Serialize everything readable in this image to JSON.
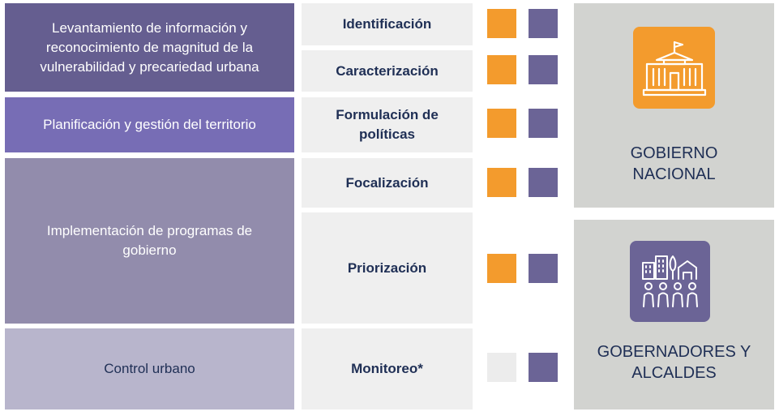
{
  "categories": [
    {
      "label": "Levantamiento de información y reconocimiento de magnitud de la vulnerabilidad y precariedad urbana",
      "color": "#655e90"
    },
    {
      "label": "Planificación y gestión del territorio",
      "color": "#776db5"
    },
    {
      "label": "Implementación de programas de gobierno",
      "color": "#928cac"
    },
    {
      "label": "Control urbano",
      "color": "#b8b5cc"
    }
  ],
  "stages": [
    {
      "label": "Identificación",
      "nacional": true,
      "local": true
    },
    {
      "label": "Caracterización",
      "nacional": true,
      "local": true
    },
    {
      "label": "Formulación de políticas",
      "nacional": true,
      "local": true
    },
    {
      "label": "Focalización",
      "nacional": true,
      "local": true
    },
    {
      "label": "Priorización",
      "nacional": true,
      "local": true
    },
    {
      "label": "Monitoreo*",
      "nacional": false,
      "local": true
    }
  ],
  "actors": [
    {
      "label": "GOBIERNO NACIONAL",
      "icon": "government-building-icon",
      "icon_color": "#f39b2d"
    },
    {
      "label": "GOBERNADORES Y ALCALDES",
      "icon": "city-people-icon",
      "icon_color": "#6b6496"
    }
  ],
  "colors": {
    "nacional": "#f39b2d",
    "local": "#6b6496",
    "inactive": "#ececec",
    "panel": "#d2d3d0",
    "text_dark": "#1f2f55"
  }
}
